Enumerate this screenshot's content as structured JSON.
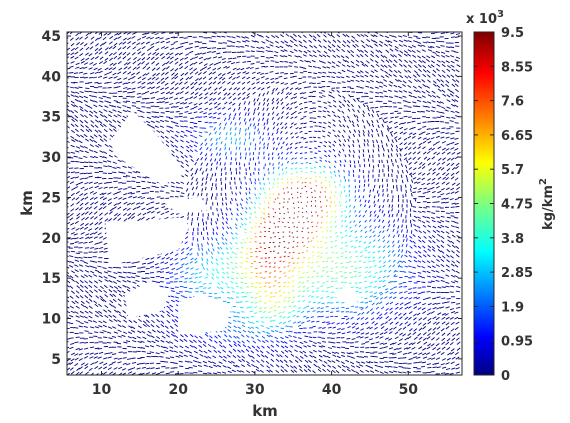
{
  "chart_data": {
    "type": "vector-field",
    "xlabel": "km",
    "ylabel": "km",
    "xlim": [
      5.5,
      57
    ],
    "ylim": [
      3,
      45.5
    ],
    "xticks": [
      "10",
      "20",
      "30",
      "40",
      "50"
    ],
    "yticks": [
      "5",
      "10",
      "15",
      "20",
      "25",
      "30",
      "35",
      "40",
      "45"
    ],
    "colorbar": {
      "label": "kg/km",
      "label_exponent": "2",
      "multiplier": "x 10",
      "multiplier_exponent": "3",
      "min": 0,
      "max": 9.5,
      "ticks": [
        "0",
        "0.95",
        "1.9",
        "2.85",
        "3.8",
        "4.75",
        "5.7",
        "6.65",
        "7.6",
        "8.55",
        "9.5"
      ],
      "colormap": [
        "#00007f",
        "#0000ff",
        "#007fff",
        "#00ffff",
        "#7fff7f",
        "#ffff00",
        "#ff7f00",
        "#ff0000",
        "#7f0000"
      ]
    },
    "grid": false,
    "legend": "none",
    "field_description": "Dense arrow-vector field; high-magnitude core (~9.5e3 kg/km^2) centred near (36 km, 25 km), decaying outward to ~0 at the domain edges. Masked white island polygons.",
    "hotspots": [
      {
        "x": 36.5,
        "y": 25.0,
        "sx": 3.6,
        "sy": 2.6,
        "a": 9.4
      },
      {
        "x": 33.5,
        "y": 21.0,
        "sx": 3.0,
        "sy": 2.6,
        "a": 6.5
      },
      {
        "x": 30.5,
        "y": 17.0,
        "sx": 3.0,
        "sy": 3.0,
        "a": 4.4
      },
      {
        "x": 38.0,
        "y": 17.5,
        "sx": 5.5,
        "sy": 3.2,
        "a": 3.6
      },
      {
        "x": 32.5,
        "y": 12.0,
        "sx": 2.6,
        "sy": 2.6,
        "a": 3.4
      },
      {
        "x": 23.5,
        "y": 15.5,
        "sx": 3.2,
        "sy": 3.2,
        "a": 2.8
      },
      {
        "x": 27.0,
        "y": 32.5,
        "sx": 3.6,
        "sy": 2.0,
        "a": 2.8
      },
      {
        "x": 42.0,
        "y": 13.0,
        "sx": 5.5,
        "sy": 2.5,
        "a": 2.2
      },
      {
        "x": 46.0,
        "y": 18.0,
        "sx": 4.0,
        "sy": 3.0,
        "a": 1.6
      },
      {
        "x": 27.5,
        "y": 9.0,
        "sx": 5.0,
        "sy": 2.5,
        "a": 1.6
      }
    ],
    "masked_regions": [
      [
        [
          12.0,
          33.0
        ],
        [
          14.0,
          35.8
        ],
        [
          17.0,
          33.0
        ],
        [
          21.0,
          28.0
        ],
        [
          18.0,
          26.5
        ],
        [
          12.0,
          30.0
        ],
        [
          11.0,
          32.0
        ]
      ],
      [
        [
          10.5,
          22.0
        ],
        [
          11.0,
          16.5
        ],
        [
          13.0,
          17.0
        ],
        [
          20.0,
          18.5
        ],
        [
          21.5,
          21.5
        ],
        [
          20.0,
          22.5
        ],
        [
          14.0,
          22.0
        ]
      ],
      [
        [
          18.0,
          24.5
        ],
        [
          23.0,
          25.0
        ],
        [
          24.0,
          23.5
        ],
        [
          20.0,
          23.0
        ]
      ],
      [
        [
          13.5,
          10.0
        ],
        [
          18.0,
          11.0
        ],
        [
          19.0,
          13.5
        ],
        [
          16.0,
          14.5
        ],
        [
          13.0,
          13.0
        ]
      ],
      [
        [
          20.0,
          8.0
        ],
        [
          26.0,
          8.5
        ],
        [
          27.0,
          11.5
        ],
        [
          23.0,
          13.0
        ],
        [
          20.0,
          12.0
        ]
      ],
      [
        [
          40.0,
          13.0
        ],
        [
          42.5,
          11.5
        ],
        [
          44.0,
          12.5
        ],
        [
          42.0,
          14.0
        ]
      ],
      [
        [
          27.6,
          19.5
        ],
        [
          28.3,
          21.5
        ],
        [
          29.0,
          20.0
        ]
      ],
      [
        [
          26.5,
          22.0
        ],
        [
          27.5,
          22.5
        ],
        [
          27.2,
          21.2
        ]
      ]
    ]
  }
}
